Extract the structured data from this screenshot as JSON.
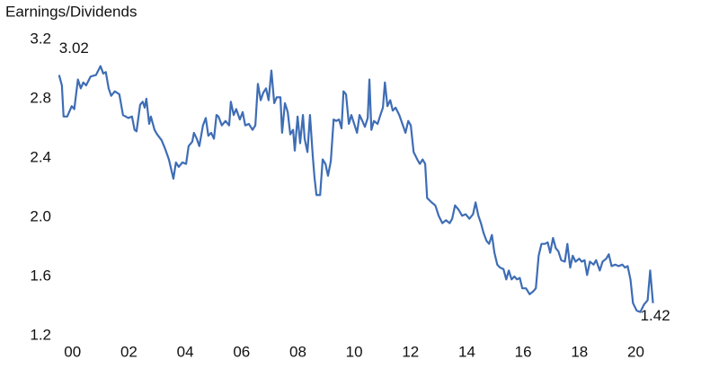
{
  "chart_data": {
    "type": "line",
    "ylabel": "Earnings/Dividends",
    "x": [
      -0.48,
      -0.38,
      -0.32,
      -0.19,
      -0.03,
      0.06,
      0.19,
      0.29,
      0.38,
      0.48,
      0.64,
      0.83,
      0.99,
      1.09,
      1.18,
      1.28,
      1.37,
      1.5,
      1.66,
      1.79,
      1.98,
      2.11,
      2.2,
      2.27,
      2.4,
      2.49,
      2.56,
      2.62,
      2.72,
      2.78,
      2.91,
      3.0,
      3.16,
      3.29,
      3.42,
      3.58,
      3.67,
      3.77,
      3.9,
      4.03,
      4.12,
      4.25,
      4.31,
      4.41,
      4.5,
      4.63,
      4.73,
      4.82,
      4.92,
      5.02,
      5.11,
      5.18,
      5.3,
      5.43,
      5.56,
      5.62,
      5.72,
      5.81,
      5.94,
      6.04,
      6.13,
      6.26,
      6.39,
      6.49,
      6.58,
      6.68,
      6.77,
      6.87,
      6.96,
      7.06,
      7.16,
      7.25,
      7.38,
      7.44,
      7.54,
      7.64,
      7.73,
      7.83,
      7.89,
      7.99,
      8.08,
      8.18,
      8.24,
      8.34,
      8.43,
      8.53,
      8.59,
      8.66,
      8.79,
      8.88,
      8.98,
      9.07,
      9.17,
      9.27,
      9.36,
      9.46,
      9.55,
      9.62,
      9.71,
      9.81,
      9.9,
      10.0,
      10.1,
      10.19,
      10.29,
      10.38,
      10.48,
      10.54,
      10.61,
      10.7,
      10.83,
      10.93,
      11.02,
      11.09,
      11.18,
      11.28,
      11.37,
      11.47,
      11.6,
      11.73,
      11.82,
      11.92,
      12.01,
      12.11,
      12.24,
      12.33,
      12.43,
      12.52,
      12.59,
      12.75,
      12.88,
      13.0,
      13.13,
      13.26,
      13.39,
      13.48,
      13.58,
      13.71,
      13.83,
      13.96,
      14.09,
      14.22,
      14.31,
      14.41,
      14.5,
      14.6,
      14.7,
      14.79,
      14.89,
      14.98,
      15.08,
      15.18,
      15.3,
      15.4,
      15.49,
      15.59,
      15.69,
      15.78,
      15.88,
      15.97,
      16.1,
      16.23,
      16.36,
      16.45,
      16.55,
      16.65,
      16.77,
      16.87,
      16.96,
      17.06,
      17.16,
      17.25,
      17.35,
      17.48,
      17.57,
      17.67,
      17.76,
      17.86,
      17.99,
      18.08,
      18.18,
      18.27,
      18.37,
      18.5,
      18.59,
      18.72,
      18.82,
      18.95,
      19.04,
      19.14,
      19.27,
      19.39,
      19.52,
      19.62,
      19.71,
      19.81,
      19.9,
      20.03,
      20.16,
      20.29,
      20.42,
      20.51,
      20.61
    ],
    "series": [
      {
        "name": "Earnings/Dividends",
        "color": "#3e6db5",
        "values": [
          2.96,
          2.89,
          2.68,
          2.68,
          2.75,
          2.73,
          2.93,
          2.87,
          2.91,
          2.89,
          2.95,
          2.96,
          3.02,
          2.97,
          2.98,
          2.87,
          2.82,
          2.85,
          2.83,
          2.69,
          2.67,
          2.68,
          2.59,
          2.58,
          2.76,
          2.78,
          2.74,
          2.8,
          2.63,
          2.68,
          2.59,
          2.56,
          2.52,
          2.46,
          2.39,
          2.26,
          2.37,
          2.34,
          2.37,
          2.36,
          2.48,
          2.51,
          2.57,
          2.53,
          2.48,
          2.62,
          2.67,
          2.55,
          2.57,
          2.53,
          2.69,
          2.68,
          2.62,
          2.65,
          2.62,
          2.78,
          2.69,
          2.73,
          2.66,
          2.71,
          2.62,
          2.63,
          2.59,
          2.62,
          2.9,
          2.79,
          2.84,
          2.87,
          2.79,
          2.99,
          2.77,
          2.81,
          2.81,
          2.57,
          2.77,
          2.71,
          2.56,
          2.59,
          2.45,
          2.68,
          2.5,
          2.69,
          2.53,
          2.44,
          2.69,
          2.41,
          2.27,
          2.15,
          2.15,
          2.39,
          2.36,
          2.28,
          2.38,
          2.66,
          2.65,
          2.66,
          2.6,
          2.85,
          2.83,
          2.63,
          2.69,
          2.63,
          2.57,
          2.69,
          2.65,
          2.61,
          2.67,
          2.93,
          2.59,
          2.65,
          2.63,
          2.69,
          2.74,
          2.91,
          2.75,
          2.79,
          2.72,
          2.74,
          2.69,
          2.62,
          2.57,
          2.65,
          2.62,
          2.44,
          2.39,
          2.36,
          2.39,
          2.36,
          2.13,
          2.1,
          2.08,
          2.01,
          1.96,
          1.98,
          1.96,
          1.99,
          2.08,
          2.05,
          2.01,
          2.02,
          1.99,
          2.02,
          2.1,
          2.01,
          1.96,
          1.89,
          1.84,
          1.82,
          1.88,
          1.76,
          1.68,
          1.66,
          1.65,
          1.58,
          1.64,
          1.58,
          1.6,
          1.58,
          1.59,
          1.52,
          1.52,
          1.48,
          1.5,
          1.52,
          1.74,
          1.82,
          1.82,
          1.83,
          1.76,
          1.86,
          1.79,
          1.77,
          1.71,
          1.7,
          1.82,
          1.66,
          1.74,
          1.7,
          1.72,
          1.7,
          1.71,
          1.61,
          1.7,
          1.68,
          1.71,
          1.64,
          1.7,
          1.72,
          1.75,
          1.67,
          1.68,
          1.67,
          1.68,
          1.66,
          1.67,
          1.58,
          1.42,
          1.37,
          1.36,
          1.41,
          1.44,
          1.64,
          1.42
        ]
      }
    ],
    "xlim": [
      -0.95,
      21.9
    ],
    "xticks": [
      {
        "value": 0,
        "label": "00"
      },
      {
        "value": 2,
        "label": "02"
      },
      {
        "value": 4,
        "label": "04"
      },
      {
        "value": 6,
        "label": "06"
      },
      {
        "value": 8,
        "label": "08"
      },
      10,
      12,
      14,
      16,
      18,
      20
    ],
    "ylim": [
      1.2,
      3.2
    ],
    "yticks": [
      1.2,
      1.6,
      {
        "value": 2,
        "label": "2.0"
      },
      2.4,
      2.8,
      3.2
    ],
    "annotations": [
      {
        "label": "3.02",
        "x": 0.99,
        "y": 3.02
      },
      {
        "label": "1.42",
        "x": 20.61,
        "y": 1.42
      }
    ]
  }
}
